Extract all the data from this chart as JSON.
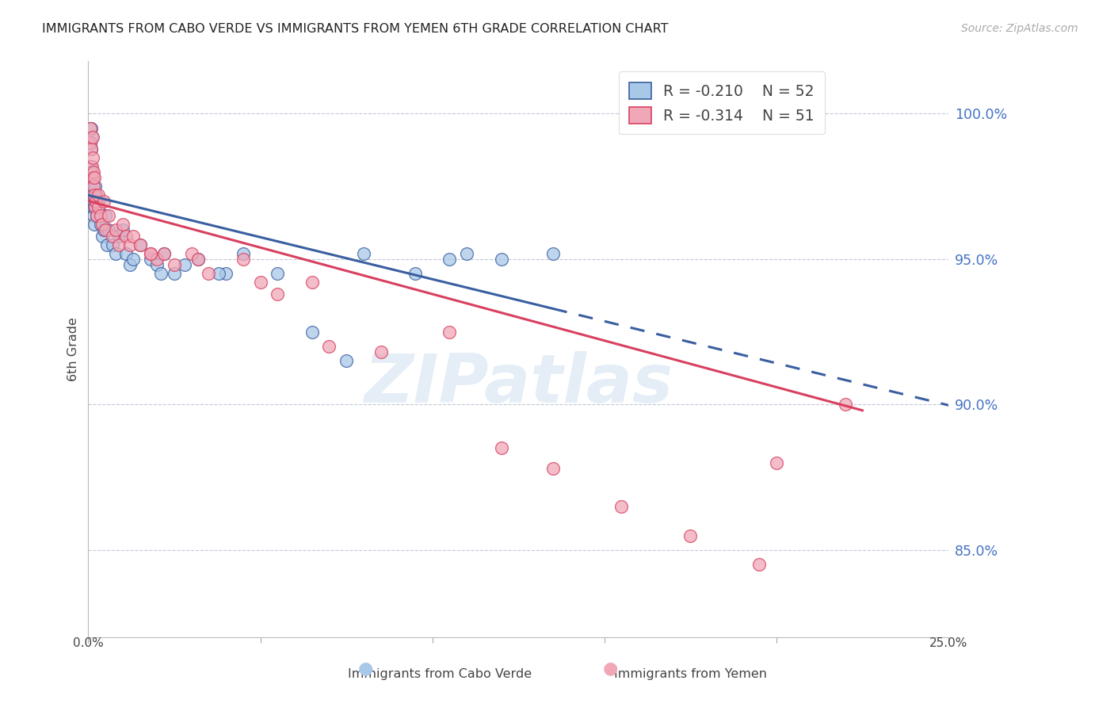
{
  "title": "IMMIGRANTS FROM CABO VERDE VS IMMIGRANTS FROM YEMEN 6TH GRADE CORRELATION CHART",
  "source": "Source: ZipAtlas.com",
  "ylabel": "6th Grade",
  "yaxis_ticks": [
    85.0,
    90.0,
    95.0,
    100.0
  ],
  "xmin": 0.0,
  "xmax": 25.0,
  "ymin": 82.0,
  "ymax": 101.8,
  "color_cabo": "#A8C8E8",
  "color_yemen": "#F0A8B8",
  "color_trend_cabo": "#3A5FA0",
  "color_trend_yemen": "#D84060",
  "color_axis_right": "#4472C4",
  "color_grid": "#C0C8D8",
  "watermark": "ZIPatlas",
  "R_cabo": -0.21,
  "N_cabo": 52,
  "R_yemen": -0.314,
  "N_yemen": 51,
  "cabo_trend_x0": 0.0,
  "cabo_trend_y0": 97.2,
  "cabo_trend_x1": 13.5,
  "cabo_trend_y1": 93.3,
  "cabo_solid_xmax": 13.5,
  "yemen_trend_x0": 0.0,
  "yemen_trend_y0": 97.0,
  "yemen_trend_x1": 22.5,
  "yemen_trend_y1": 89.8,
  "cabo_x": [
    0.05,
    0.06,
    0.07,
    0.08,
    0.09,
    0.1,
    0.11,
    0.12,
    0.13,
    0.14,
    0.15,
    0.16,
    0.17,
    0.18,
    0.2,
    0.22,
    0.25,
    0.28,
    0.3,
    0.35,
    0.4,
    0.45,
    0.5,
    0.55,
    0.6,
    0.7,
    0.8,
    0.9,
    1.0,
    1.1,
    1.2,
    1.3,
    1.5,
    1.8,
    2.0,
    2.2,
    2.5,
    2.8,
    3.2,
    4.0,
    4.5,
    5.5,
    6.5,
    7.5,
    8.0,
    9.5,
    10.5,
    11.0,
    12.0,
    13.5,
    2.1,
    3.8
  ],
  "cabo_y": [
    97.5,
    98.2,
    99.0,
    99.5,
    98.8,
    99.2,
    98.0,
    97.8,
    97.2,
    96.8,
    97.0,
    96.5,
    96.2,
    96.8,
    97.5,
    97.2,
    96.5,
    96.8,
    97.0,
    96.2,
    95.8,
    96.0,
    96.5,
    95.5,
    96.0,
    95.5,
    95.2,
    95.8,
    96.0,
    95.2,
    94.8,
    95.0,
    95.5,
    95.0,
    94.8,
    95.2,
    94.5,
    94.8,
    95.0,
    94.5,
    95.2,
    94.5,
    92.5,
    91.5,
    95.2,
    94.5,
    95.0,
    95.2,
    95.0,
    95.2,
    94.5,
    94.5
  ],
  "yemen_x": [
    0.05,
    0.07,
    0.09,
    0.11,
    0.12,
    0.13,
    0.14,
    0.15,
    0.16,
    0.17,
    0.18,
    0.2,
    0.22,
    0.25,
    0.28,
    0.3,
    0.35,
    0.4,
    0.45,
    0.5,
    0.6,
    0.7,
    0.8,
    0.9,
    1.0,
    1.1,
    1.2,
    1.3,
    1.5,
    1.8,
    2.0,
    2.2,
    2.5,
    3.0,
    3.5,
    4.5,
    5.0,
    7.0,
    8.5,
    10.5,
    12.0,
    13.5,
    15.5,
    17.5,
    19.5,
    20.0,
    22.0,
    1.8,
    3.2,
    5.5,
    6.5
  ],
  "yemen_y": [
    99.0,
    99.5,
    98.8,
    98.2,
    99.2,
    98.5,
    97.8,
    98.0,
    97.5,
    97.2,
    97.8,
    96.8,
    97.0,
    96.5,
    96.8,
    97.2,
    96.5,
    96.2,
    97.0,
    96.0,
    96.5,
    95.8,
    96.0,
    95.5,
    96.2,
    95.8,
    95.5,
    95.8,
    95.5,
    95.2,
    95.0,
    95.2,
    94.8,
    95.2,
    94.5,
    95.0,
    94.2,
    92.0,
    91.8,
    92.5,
    88.5,
    87.8,
    86.5,
    85.5,
    84.5,
    88.0,
    90.0,
    95.2,
    95.0,
    93.8,
    94.2
  ],
  "legend_label_cabo": "Immigrants from Cabo Verde",
  "legend_label_yemen": "Immigrants from Yemen"
}
